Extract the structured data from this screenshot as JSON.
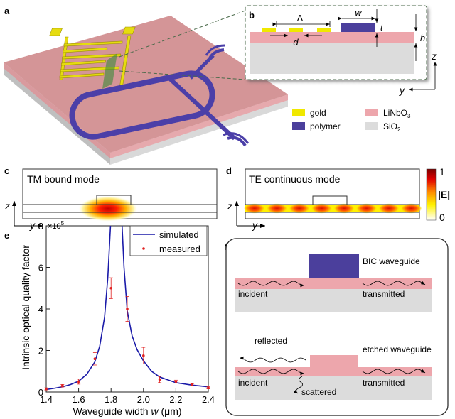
{
  "panels": {
    "a": {
      "label": "a"
    },
    "b": {
      "label": "b",
      "dims": {
        "period": "Λ",
        "width": "w",
        "thickness": "t",
        "height": "h",
        "gap": "d"
      },
      "axes": {
        "vertical": "z",
        "horizontal": "y"
      }
    },
    "legend": {
      "items": [
        {
          "name": "gold",
          "sub": "",
          "color": "#f0e800"
        },
        {
          "name": "polymer",
          "sub": "",
          "color": "#4b3f9c"
        },
        {
          "name": "LiNbO",
          "sub": "3",
          "color": "#eda6ac"
        },
        {
          "name": "SiO",
          "sub": "2",
          "color": "#dcdcdc"
        }
      ]
    },
    "c": {
      "label": "c",
      "title": "TM bound mode",
      "axes": {
        "vertical": "z",
        "horizontal": "y"
      }
    },
    "d": {
      "label": "d",
      "title": "TE continuous mode",
      "axes": {
        "vertical": "z",
        "horizontal": "y"
      },
      "colorbar": {
        "max": "1",
        "min": "0",
        "label": "|E|",
        "colors": [
          "#ffffff",
          "#fff200",
          "#ff8c00",
          "#e00000",
          "#7a0000"
        ]
      }
    },
    "e": {
      "label": "e"
    },
    "f": {
      "label": "f",
      "top": {
        "name": "BIC waveguide",
        "incident": "incident",
        "transmitted": "transmitted"
      },
      "bottom": {
        "name": "etched waveguide",
        "reflected": "reflected",
        "incident": "incident",
        "scattered": "scattered",
        "transmitted": "transmitted"
      }
    }
  },
  "chart_data": {
    "type": "line",
    "xlabel_prefix": "Waveguide width ",
    "xlabel_var": "w",
    "xlabel_unit": " (μm)",
    "ylabel": "Intrinsic optical quality factor",
    "y_multiplier": "×10",
    "y_multiplier_exp": "5",
    "xlim": [
      1.4,
      2.4
    ],
    "ylim": [
      0,
      8
    ],
    "xticks": [
      "1.4",
      "1.6",
      "1.8",
      "2.0",
      "2.2",
      "2.4"
    ],
    "yticks": [
      "0",
      "2",
      "4",
      "6",
      "8"
    ],
    "legend_placement": "top-right",
    "series": [
      {
        "name": "simulated",
        "kind": "line",
        "color": "#1a1aa8",
        "x": [
          1.4,
          1.45,
          1.5,
          1.55,
          1.6,
          1.65,
          1.7,
          1.73,
          1.76,
          1.78,
          1.8,
          1.81,
          1.855,
          1.865,
          1.88,
          1.9,
          1.93,
          1.96,
          2.0,
          2.05,
          2.1,
          2.2,
          2.3,
          2.4
        ],
        "y": [
          0.12,
          0.18,
          0.25,
          0.36,
          0.52,
          0.85,
          1.45,
          2.2,
          3.6,
          5.5,
          8.5,
          10,
          10,
          8.5,
          6.0,
          3.9,
          2.7,
          2.05,
          1.5,
          1.0,
          0.72,
          0.45,
          0.33,
          0.25
        ]
      },
      {
        "name": "measured",
        "kind": "scatter",
        "color": "#e02020",
        "x": [
          1.4,
          1.5,
          1.6,
          1.7,
          1.8,
          1.9,
          2.0,
          2.1,
          2.2,
          2.3,
          2.4
        ],
        "y": [
          0.15,
          0.3,
          0.5,
          1.6,
          5.0,
          4.0,
          1.75,
          0.6,
          0.5,
          0.35,
          0.2
        ],
        "err": [
          0.05,
          0.06,
          0.12,
          0.3,
          0.5,
          0.6,
          0.4,
          0.15,
          0.07,
          0.05,
          0.05
        ]
      }
    ]
  }
}
